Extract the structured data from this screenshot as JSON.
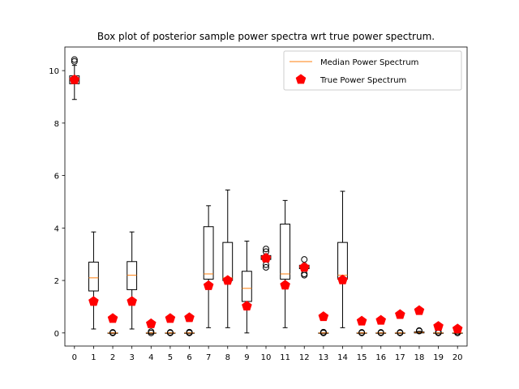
{
  "chart_data": {
    "type": "box",
    "title": "Box plot of posterior sample power spectra wrt true power spectrum.",
    "xlabel": "",
    "ylabel": "",
    "categories": [
      "0",
      "1",
      "2",
      "3",
      "4",
      "5",
      "6",
      "7",
      "8",
      "9",
      "10",
      "11",
      "12",
      "13",
      "14",
      "15",
      "16",
      "17",
      "18",
      "19",
      "20"
    ],
    "ylim": [
      -0.5,
      10.9
    ],
    "yticks": [
      0,
      2,
      4,
      6,
      8,
      10
    ],
    "grid": false,
    "legend_position": "top-right",
    "legend": [
      {
        "label": "Median Power Spectrum",
        "color": "#ff7f0e"
      },
      {
        "label": "True Power Spectrum",
        "color": "#ff0000"
      }
    ],
    "boxes": [
      {
        "whisker_low": 8.9,
        "q1": 9.5,
        "median": 9.65,
        "q3": 9.8,
        "whisker_high": 10.2,
        "outliers": [
          10.35,
          10.42
        ]
      },
      {
        "whisker_low": 0.15,
        "q1": 1.6,
        "median": 2.1,
        "q3": 2.7,
        "whisker_high": 3.85,
        "outliers": []
      },
      {
        "whisker_low": 0.0,
        "q1": 0.0,
        "median": 0.0,
        "q3": 0.0,
        "whisker_high": 0.0,
        "outliers": [
          0.0,
          0.02
        ]
      },
      {
        "whisker_low": 0.15,
        "q1": 1.65,
        "median": 2.2,
        "q3": 2.72,
        "whisker_high": 3.85,
        "outliers": []
      },
      {
        "whisker_low": 0.0,
        "q1": 0.0,
        "median": 0.0,
        "q3": 0.0,
        "whisker_high": 0.0,
        "outliers": [
          0.0,
          0.05
        ]
      },
      {
        "whisker_low": 0.0,
        "q1": 0.0,
        "median": 0.0,
        "q3": 0.0,
        "whisker_high": 0.0,
        "outliers": [
          0.0,
          0.02
        ]
      },
      {
        "whisker_low": 0.0,
        "q1": 0.0,
        "median": 0.0,
        "q3": 0.0,
        "whisker_high": 0.0,
        "outliers": [
          0.0,
          0.03
        ]
      },
      {
        "whisker_low": 0.2,
        "q1": 2.05,
        "median": 2.25,
        "q3": 4.05,
        "whisker_high": 4.85,
        "outliers": []
      },
      {
        "whisker_low": 0.2,
        "q1": 2.0,
        "median": 2.1,
        "q3": 3.45,
        "whisker_high": 5.45,
        "outliers": []
      },
      {
        "whisker_low": 0.0,
        "q1": 1.2,
        "median": 1.7,
        "q3": 2.35,
        "whisker_high": 3.5,
        "outliers": []
      },
      {
        "whisker_low": 2.75,
        "q1": 2.8,
        "median": 2.87,
        "q3": 2.95,
        "whisker_high": 3.0,
        "outliers": [
          2.5,
          2.6,
          3.1,
          3.2
        ]
      },
      {
        "whisker_low": 0.2,
        "q1": 2.05,
        "median": 2.25,
        "q3": 4.15,
        "whisker_high": 5.05,
        "outliers": []
      },
      {
        "whisker_low": 2.4,
        "q1": 2.45,
        "median": 2.5,
        "q3": 2.58,
        "whisker_high": 2.65,
        "outliers": [
          2.2,
          2.25,
          2.8
        ]
      },
      {
        "whisker_low": 0.0,
        "q1": 0.0,
        "median": 0.0,
        "q3": 0.0,
        "whisker_high": 0.0,
        "outliers": [
          0.0,
          0.03
        ]
      },
      {
        "whisker_low": 0.2,
        "q1": 2.05,
        "median": 2.2,
        "q3": 3.45,
        "whisker_high": 5.4,
        "outliers": []
      },
      {
        "whisker_low": 0.0,
        "q1": 0.0,
        "median": 0.0,
        "q3": 0.0,
        "whisker_high": 0.0,
        "outliers": [
          0.0,
          0.02
        ]
      },
      {
        "whisker_low": 0.0,
        "q1": 0.0,
        "median": 0.0,
        "q3": 0.0,
        "whisker_high": 0.0,
        "outliers": [
          0.0,
          0.02
        ]
      },
      {
        "whisker_low": 0.0,
        "q1": 0.0,
        "median": 0.0,
        "q3": 0.0,
        "whisker_high": 0.0,
        "outliers": [
          0.0,
          0.02
        ]
      },
      {
        "whisker_low": 0.0,
        "q1": 0.0,
        "median": 0.02,
        "q3": 0.04,
        "whisker_high": 0.06,
        "outliers": [
          0.07,
          0.09
        ]
      },
      {
        "whisker_low": 0.0,
        "q1": 0.0,
        "median": 0.0,
        "q3": 0.0,
        "whisker_high": 0.0,
        "outliers": [
          0.0,
          0.03
        ]
      },
      {
        "whisker_low": 0.0,
        "q1": 0.0,
        "median": 0.0,
        "q3": 0.0,
        "whisker_high": 0.0,
        "outliers": [
          0.0,
          0.04
        ]
      }
    ],
    "true_values": [
      9.65,
      1.2,
      0.55,
      1.2,
      0.35,
      0.55,
      0.58,
      1.8,
      2.0,
      1.02,
      2.85,
      1.82,
      2.5,
      0.62,
      2.02,
      0.45,
      0.48,
      0.7,
      0.85,
      0.25,
      0.15
    ]
  }
}
